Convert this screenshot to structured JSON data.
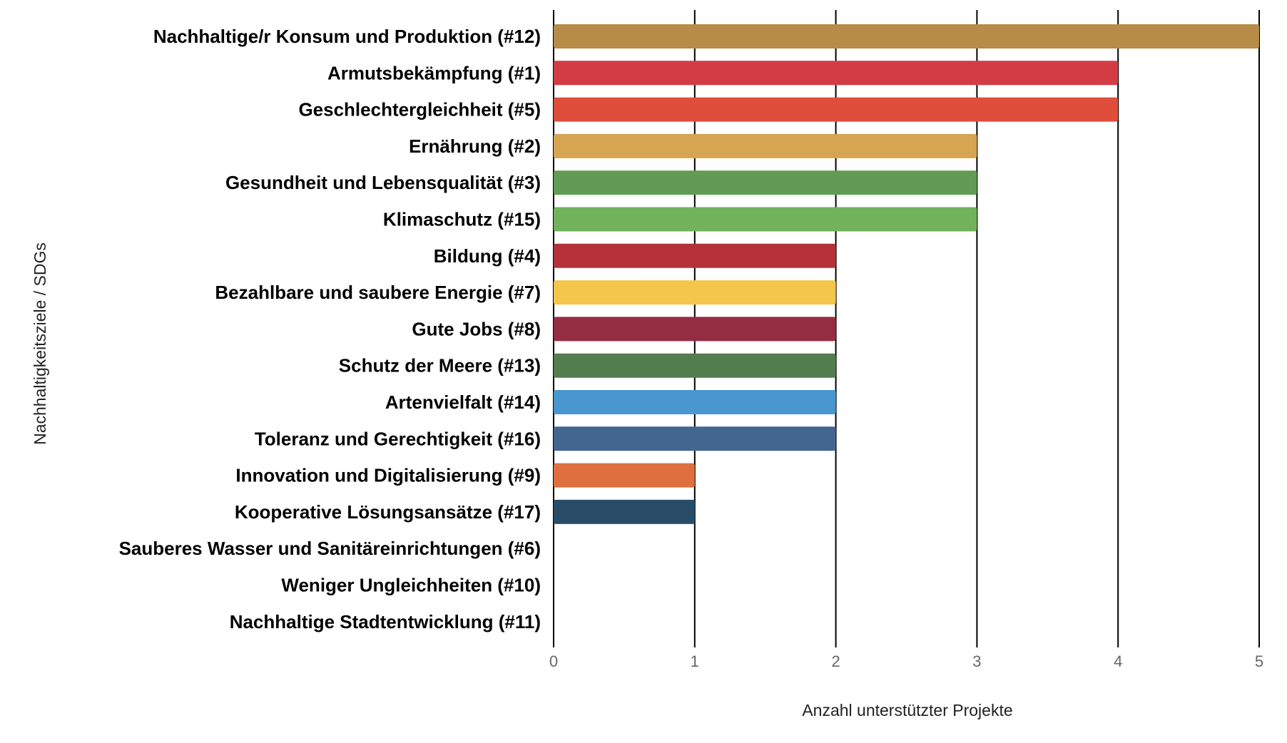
{
  "chart_data": {
    "type": "bar",
    "orientation": "horizontal",
    "categories": [
      "Nachhaltige/r Konsum und Produktion (#12)",
      "Armutsbekämpfung (#1)",
      "Geschlechtergleichheit (#5)",
      "Ernährung (#2)",
      "Gesundheit und Lebensqualität (#3)",
      "Klimaschutz (#15)",
      "Bildung (#4)",
      "Bezahlbare und saubere Energie (#7)",
      "Gute Jobs (#8)",
      "Schutz der Meere (#13)",
      "Artenvielfalt (#14)",
      "Toleranz und Gerechtigkeit (#16)",
      "Innovation und Digitalisierung (#9)",
      "Kooperative Lösungsansätze (#17)",
      "Sauberes Wasser und Sanitäreinrichtungen (#6)",
      "Weniger Ungleichheiten (#10)",
      "Nachhaltige Stadtentwicklung (#11)"
    ],
    "values": [
      5,
      4,
      4,
      3,
      3,
      3,
      2,
      2,
      2,
      2,
      2,
      2,
      1,
      1,
      0,
      0,
      0
    ],
    "colors": [
      "#b68c46",
      "#d43c45",
      "#df4e3b",
      "#d6a552",
      "#629b53",
      "#71b35a",
      "#b5323a",
      "#f4c64c",
      "#952d42",
      "#527e4d",
      "#4897cf",
      "#436691",
      "#e06f40",
      "#294c69",
      "#3bb0d8",
      "#d4356f",
      "#f19c3a"
    ],
    "xlabel": "Anzahl unterstützter Projekte",
    "ylabel": "Nachhaltigkeitsziele / SDGs",
    "xlim": [
      0,
      5
    ],
    "xticks": [
      "0",
      "1",
      "2",
      "3",
      "4",
      "5"
    ],
    "grid": true,
    "legend": "none"
  }
}
